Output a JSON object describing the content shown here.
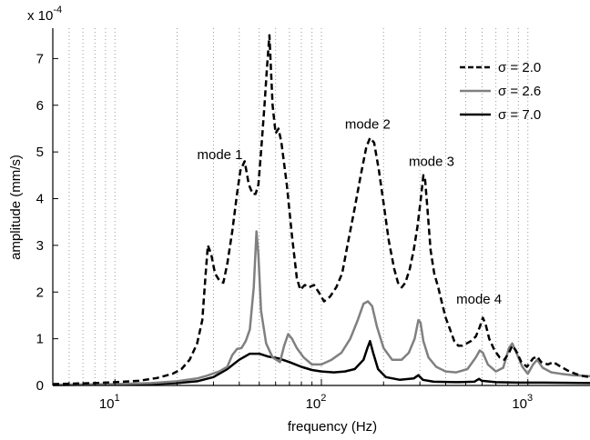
{
  "chart_data": {
    "type": "line",
    "xscale": "log",
    "xlim": [
      5,
      2000
    ],
    "ylim": [
      0,
      0.000765
    ],
    "xlabel": "frequency (Hz)",
    "ylabel": "amplitude (mm/s)",
    "y_multiplier": {
      "base": "x 10",
      "exponent": "-4"
    },
    "grid": {
      "x_minor": true,
      "style": "dotted"
    },
    "x_ticks": [
      {
        "value": 10,
        "base": "10",
        "exp": "1"
      },
      {
        "value": 100,
        "base": "10",
        "exp": "2"
      },
      {
        "value": 1000,
        "base": "10",
        "exp": "3"
      }
    ],
    "y_ticks": [
      {
        "value": 0,
        "label": "0"
      },
      {
        "value": 0.0001,
        "label": "1"
      },
      {
        "value": 0.0002,
        "label": "2"
      },
      {
        "value": 0.0003,
        "label": "3"
      },
      {
        "value": 0.0004,
        "label": "4"
      },
      {
        "value": 0.0005,
        "label": "5"
      },
      {
        "value": 0.0006,
        "label": "6"
      },
      {
        "value": 0.0007,
        "label": "7"
      }
    ],
    "legend": {
      "placement": "top-right",
      "entries": [
        {
          "label": "σ = 2.0",
          "color": "#000000",
          "dash": "dashed"
        },
        {
          "label": "σ = 2.6",
          "color": "#808080",
          "dash": "solid"
        },
        {
          "label": "σ = 7.0",
          "color": "#000000",
          "dash": "solid"
        }
      ]
    },
    "annotations": [
      {
        "text": "mode 1",
        "x": 25,
        "y": 0.000485
      },
      {
        "text": "mode 2",
        "x": 130,
        "y": 0.00055
      },
      {
        "text": "mode 3",
        "x": 265,
        "y": 0.00047
      },
      {
        "text": "mode 4",
        "x": 450,
        "y": 0.000175
      }
    ],
    "series": [
      {
        "name": "σ = 2.0",
        "color": "#000000",
        "dash": "dashed",
        "width": 2.5,
        "points": [
          [
            5,
            3e-06
          ],
          [
            8,
            5e-06
          ],
          [
            10,
            7e-06
          ],
          [
            13,
            1e-05
          ],
          [
            16,
            1.6e-05
          ],
          [
            19,
            2.5e-05
          ],
          [
            21,
            3.5e-05
          ],
          [
            23,
            5.5e-05
          ],
          [
            25,
            9e-05
          ],
          [
            26.5,
            0.00014
          ],
          [
            27.5,
            0.00024
          ],
          [
            28.2,
            0.0003
          ],
          [
            29.3,
            0.00028
          ],
          [
            30.5,
            0.00024
          ],
          [
            32,
            0.000225
          ],
          [
            33.5,
            0.00022
          ],
          [
            35,
            0.00026
          ],
          [
            37,
            0.00033
          ],
          [
            39,
            0.00041
          ],
          [
            40.5,
            0.00046
          ],
          [
            42.5,
            0.00048
          ],
          [
            44.5,
            0.00043
          ],
          [
            46.5,
            0.00041
          ],
          [
            48,
            0.00041
          ],
          [
            49.5,
            0.00043
          ],
          [
            51,
            0.0005
          ],
          [
            53,
            0.0006
          ],
          [
            54.5,
            0.00068
          ],
          [
            56,
            0.00075
          ],
          [
            58,
            0.0006
          ],
          [
            60,
            0.00054
          ],
          [
            62,
            0.00055
          ],
          [
            64,
            0.00052
          ],
          [
            68,
            0.00043
          ],
          [
            72,
            0.00032
          ],
          [
            76,
            0.00023
          ],
          [
            79,
            0.000205
          ],
          [
            83,
            0.000215
          ],
          [
            87,
            0.00021
          ],
          [
            92,
            0.000215
          ],
          [
            97,
            0.0002
          ],
          [
            103,
            0.00018
          ],
          [
            110,
            0.00019
          ],
          [
            118,
            0.00021
          ],
          [
            126,
            0.00024
          ],
          [
            135,
            0.00031
          ],
          [
            145,
            0.00038
          ],
          [
            155,
            0.00045
          ],
          [
            165,
            0.00051
          ],
          [
            172,
            0.00053
          ],
          [
            180,
            0.00052
          ],
          [
            190,
            0.00046
          ],
          [
            200,
            0.00039
          ],
          [
            212,
            0.00031
          ],
          [
            225,
            0.00025
          ],
          [
            235,
            0.00022
          ],
          [
            245,
            0.00021
          ],
          [
            255,
            0.00022
          ],
          [
            268,
            0.00025
          ],
          [
            280,
            0.00029
          ],
          [
            292,
            0.00034
          ],
          [
            303,
            0.0004
          ],
          [
            312,
            0.00045
          ],
          [
            318,
            0.00044
          ],
          [
            326,
            0.00038
          ],
          [
            338,
            0.00029
          ],
          [
            352,
            0.00024
          ],
          [
            368,
            0.00021
          ],
          [
            382,
            0.00018
          ],
          [
            400,
            0.000145
          ],
          [
            420,
            0.00012
          ],
          [
            440,
            9.5e-05
          ],
          [
            460,
            8.5e-05
          ],
          [
            480,
            8.5e-05
          ],
          [
            505,
            9e-05
          ],
          [
            530,
            9.5e-05
          ],
          [
            560,
            0.000105
          ],
          [
            585,
            0.000125
          ],
          [
            605,
            0.000145
          ],
          [
            625,
            0.00013
          ],
          [
            650,
            0.0001
          ],
          [
            690,
            7.5e-05
          ],
          [
            730,
            6e-05
          ],
          [
            770,
            5.5e-05
          ],
          [
            810,
            7e-05
          ],
          [
            840,
            8.5e-05
          ],
          [
            875,
            7.5e-05
          ],
          [
            930,
            5e-05
          ],
          [
            990,
            4e-05
          ],
          [
            1060,
            5.8e-05
          ],
          [
            1110,
            6.2e-05
          ],
          [
            1160,
            5e-05
          ],
          [
            1250,
            4.5e-05
          ],
          [
            1330,
            5e-05
          ],
          [
            1420,
            4.2e-05
          ],
          [
            1560,
            3.2e-05
          ],
          [
            1700,
            2.5e-05
          ],
          [
            1850,
            2e-05
          ],
          [
            2000,
            1.8e-05
          ]
        ]
      },
      {
        "name": "σ = 2.6",
        "color": "#808080",
        "dash": "solid",
        "width": 2.5,
        "points": [
          [
            5,
            1.5e-06
          ],
          [
            10,
            3e-06
          ],
          [
            15,
            5e-06
          ],
          [
            20,
            9e-06
          ],
          [
            25,
            1.5e-05
          ],
          [
            28,
            2.1e-05
          ],
          [
            32,
            3e-05
          ],
          [
            35,
            4e-05
          ],
          [
            37,
            6.5e-05
          ],
          [
            39,
            7.8e-05
          ],
          [
            41,
            8e-05
          ],
          [
            43,
            9.5e-05
          ],
          [
            45,
            0.00012
          ],
          [
            47,
            0.00021
          ],
          [
            48.5,
            0.00033
          ],
          [
            49.5,
            0.00028
          ],
          [
            51,
            0.00016
          ],
          [
            54,
            9e-05
          ],
          [
            58,
            6e-05
          ],
          [
            63,
            5e-05
          ],
          [
            66,
            8.5e-05
          ],
          [
            69,
            0.00011
          ],
          [
            72,
            0.0001
          ],
          [
            76,
            8e-05
          ],
          [
            82,
            6e-05
          ],
          [
            90,
            4.5e-05
          ],
          [
            100,
            4.5e-05
          ],
          [
            112,
            5.5e-05
          ],
          [
            125,
            7e-05
          ],
          [
            138,
            0.0001
          ],
          [
            150,
            0.00014
          ],
          [
            160,
            0.000175
          ],
          [
            168,
            0.00018
          ],
          [
            176,
            0.00017
          ],
          [
            186,
            0.000125
          ],
          [
            200,
            8e-05
          ],
          [
            220,
            5.5e-05
          ],
          [
            245,
            5.5e-05
          ],
          [
            265,
            7e-05
          ],
          [
            283,
            0.0001
          ],
          [
            295,
            0.00014
          ],
          [
            302,
            0.000135
          ],
          [
            312,
            9.5e-05
          ],
          [
            330,
            6e-05
          ],
          [
            360,
            4e-05
          ],
          [
            400,
            3e-05
          ],
          [
            450,
            2.8e-05
          ],
          [
            510,
            3.5e-05
          ],
          [
            560,
            6e-05
          ],
          [
            585,
            7.5e-05
          ],
          [
            605,
            7e-05
          ],
          [
            640,
            4.5e-05
          ],
          [
            700,
            3e-05
          ],
          [
            760,
            3.8e-05
          ],
          [
            810,
            8e-05
          ],
          [
            840,
            9e-05
          ],
          [
            880,
            7e-05
          ],
          [
            940,
            4e-05
          ],
          [
            1000,
            2.5e-05
          ],
          [
            1060,
            4.5e-05
          ],
          [
            1110,
            5.5e-05
          ],
          [
            1180,
            3.8e-05
          ],
          [
            1300,
            2.8e-05
          ],
          [
            1450,
            2.5e-05
          ],
          [
            1650,
            2.2e-05
          ],
          [
            2000,
            2e-05
          ]
        ]
      },
      {
        "name": "σ = 7.0",
        "color": "#000000",
        "dash": "solid",
        "width": 2.5,
        "points": [
          [
            5,
            1e-06
          ],
          [
            10,
            2e-06
          ],
          [
            15,
            3e-06
          ],
          [
            20,
            5e-06
          ],
          [
            25,
            9e-06
          ],
          [
            30,
            1.8e-05
          ],
          [
            35,
            3.5e-05
          ],
          [
            40,
            5.5e-05
          ],
          [
            45,
            6.8e-05
          ],
          [
            50,
            6.8e-05
          ],
          [
            55,
            6.2e-05
          ],
          [
            62,
            5.8e-05
          ],
          [
            70,
            5e-05
          ],
          [
            80,
            4e-05
          ],
          [
            90,
            3.3e-05
          ],
          [
            100,
            3e-05
          ],
          [
            115,
            2.8e-05
          ],
          [
            130,
            3e-05
          ],
          [
            145,
            3.5e-05
          ],
          [
            160,
            5.5e-05
          ],
          [
            167,
            8e-05
          ],
          [
            172,
            9.5e-05
          ],
          [
            178,
            7e-05
          ],
          [
            188,
            3.5e-05
          ],
          [
            205,
            1.8e-05
          ],
          [
            240,
            1.2e-05
          ],
          [
            280,
            1.5e-05
          ],
          [
            295,
            2.2e-05
          ],
          [
            310,
            1.2e-05
          ],
          [
            350,
            8e-06
          ],
          [
            450,
            7e-06
          ],
          [
            550,
            8e-06
          ],
          [
            580,
            1.4e-05
          ],
          [
            600,
            1e-05
          ],
          [
            700,
            7e-06
          ],
          [
            900,
            6e-06
          ],
          [
            1200,
            6e-06
          ],
          [
            2000,
            5e-06
          ]
        ]
      }
    ]
  }
}
